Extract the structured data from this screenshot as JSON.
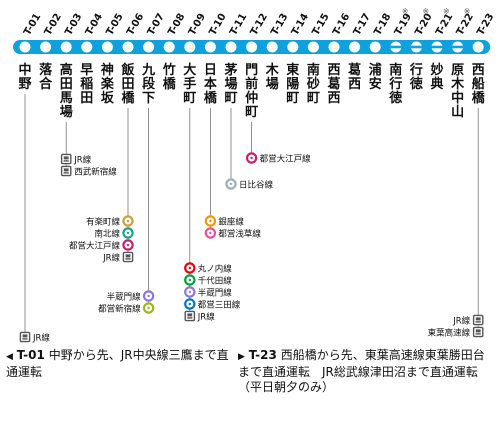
{
  "colors": {
    "line": "#0fa0e0",
    "text": "#111111"
  },
  "stations": [
    {
      "code": "T-01",
      "name": "中野",
      "terminal": true
    },
    {
      "code": "T-02",
      "name": "落合"
    },
    {
      "code": "T-03",
      "name": "高田馬場"
    },
    {
      "code": "T-04",
      "name": "早稲田"
    },
    {
      "code": "T-05",
      "name": "神楽坂"
    },
    {
      "code": "T-06",
      "name": "飯田橋"
    },
    {
      "code": "T-07",
      "name": "九段下"
    },
    {
      "code": "T-08",
      "name": "竹橋"
    },
    {
      "code": "T-09",
      "name": "大手町"
    },
    {
      "code": "T-10",
      "name": "日本橋"
    },
    {
      "code": "T-11",
      "name": "茅場町"
    },
    {
      "code": "T-12",
      "name": "門前仲町"
    },
    {
      "code": "T-13",
      "name": "木場"
    },
    {
      "code": "T-14",
      "name": "東陽町"
    },
    {
      "code": "T-15",
      "name": "南砂町"
    },
    {
      "code": "T-16",
      "name": "西葛西"
    },
    {
      "code": "T-17",
      "name": "葛西"
    },
    {
      "code": "T-18",
      "name": "浦安"
    },
    {
      "code": "T-19",
      "name": "南行徳",
      "skip": true,
      "mark": "※"
    },
    {
      "code": "T-20",
      "name": "行徳",
      "skip": true,
      "mark": "※"
    },
    {
      "code": "T-21",
      "name": "妙典",
      "skip": true,
      "mark": "※"
    },
    {
      "code": "T-22",
      "name": "原木中山",
      "skip": true,
      "mark": "※"
    },
    {
      "code": "T-23",
      "name": "西船橋",
      "terminal": true
    }
  ],
  "transfers": [
    {
      "station": 0,
      "label": "JR線",
      "icon": "jr",
      "color": "#555555"
    },
    {
      "station": 2,
      "label": "JR線",
      "icon": "jr",
      "color": "#555555"
    },
    {
      "station": 2,
      "label": "西武新宿線",
      "icon": "jr",
      "color": "#555555"
    },
    {
      "station": 5,
      "label": "有楽町線",
      "icon": "circle",
      "color": "#c9a13b"
    },
    {
      "station": 5,
      "label": "南北線",
      "icon": "circle",
      "color": "#1aa58a"
    },
    {
      "station": 5,
      "label": "都営大江戸線",
      "icon": "circle",
      "color": "#c6206e"
    },
    {
      "station": 5,
      "label": "JR線",
      "icon": "jr",
      "color": "#555555"
    },
    {
      "station": 6,
      "label": "半蔵門線",
      "icon": "circle",
      "color": "#8f76d6"
    },
    {
      "station": 6,
      "label": "都営新宿線",
      "icon": "circle",
      "color": "#9fb71b"
    },
    {
      "station": 8,
      "label": "丸ノ内線",
      "icon": "circle",
      "color": "#e60012"
    },
    {
      "station": 8,
      "label": "千代田線",
      "icon": "circle",
      "color": "#00a040"
    },
    {
      "station": 8,
      "label": "半蔵門線",
      "icon": "circle",
      "color": "#8f76d6"
    },
    {
      "station": 8,
      "label": "都営三田線",
      "icon": "circle",
      "color": "#0079c2"
    },
    {
      "station": 8,
      "label": "JR線",
      "icon": "jr",
      "color": "#555555"
    },
    {
      "station": 9,
      "label": "銀座線",
      "icon": "circle",
      "color": "#f39700"
    },
    {
      "station": 9,
      "label": "都営浅草線",
      "icon": "circle",
      "color": "#e85298"
    },
    {
      "station": 10,
      "label": "日比谷線",
      "icon": "circle",
      "color": "#9caeb7"
    },
    {
      "station": 11,
      "label": "都営大江戸線",
      "icon": "circle",
      "color": "#c6206e"
    },
    {
      "station": 22,
      "label": "JR線",
      "icon": "jr",
      "color": "#555555"
    },
    {
      "station": 22,
      "label": "東葉高速線",
      "icon": "jr",
      "color": "#555555"
    }
  ],
  "notes": {
    "left": {
      "code": "T-01",
      "text": "中野から先、JR中央線三鷹まで直通運転"
    },
    "right": {
      "code": "T-23",
      "text": "西船橋から先、東葉高速線東葉勝田台まで直通運転　JR総武線津田沼まで直通運転（平日朝夕のみ）"
    }
  }
}
